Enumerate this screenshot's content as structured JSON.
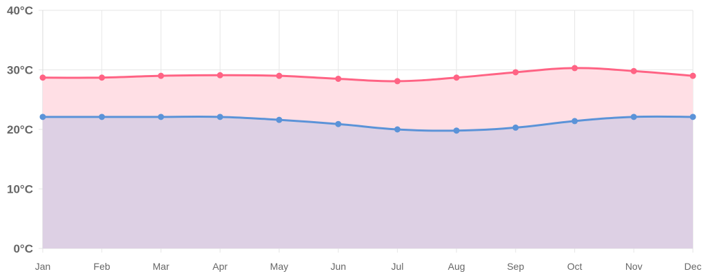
{
  "chart_data": {
    "type": "area",
    "categories": [
      "Jan",
      "Feb",
      "Mar",
      "Apr",
      "May",
      "Jun",
      "Jul",
      "Aug",
      "Sep",
      "Oct",
      "Nov",
      "Dec"
    ],
    "series": [
      {
        "values": [
          28.7,
          28.7,
          29.0,
          29.1,
          29.0,
          28.5,
          28.1,
          28.7,
          29.6,
          30.3,
          29.8,
          29.0
        ],
        "line_color": "#ff6384",
        "fill_color": "#ffdfe5"
      },
      {
        "values": [
          22.1,
          22.1,
          22.1,
          22.1,
          21.6,
          20.9,
          20.0,
          19.8,
          20.3,
          21.4,
          22.1,
          22.1
        ],
        "line_color": "#5b93d8",
        "fill_color": "#ddd0e4"
      }
    ],
    "y_ticks": [
      "0°C",
      "10°C",
      "20°C",
      "30°C",
      "40°C"
    ],
    "ylim": [
      0,
      40
    ],
    "grid": true,
    "title": "",
    "xlabel": "",
    "ylabel": ""
  }
}
